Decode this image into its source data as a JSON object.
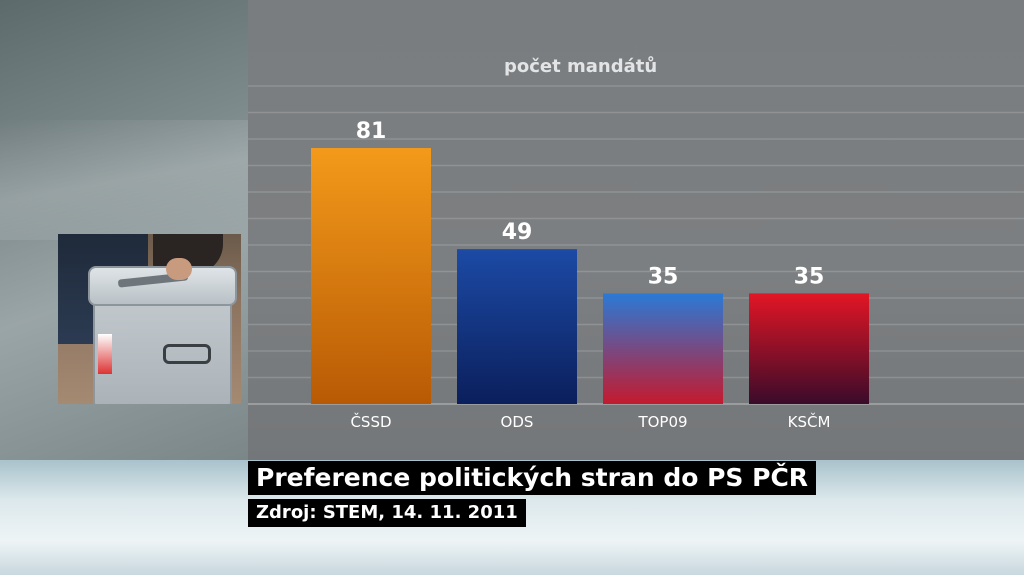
{
  "chart_data": {
    "type": "bar",
    "subtitle": "počet mandátů",
    "categories": [
      "ČSSD",
      "ODS",
      "TOP09",
      "KSČM"
    ],
    "values": [
      81,
      49,
      35,
      35
    ],
    "ylim": [
      0,
      100
    ],
    "grid": true,
    "colors": [
      [
        "#f39a1a",
        "#b85a05"
      ],
      [
        "#1c4aa5",
        "#0b1f5c"
      ],
      [
        "#2a7ad6",
        "#c41a2e"
      ],
      [
        "#e21625",
        "#3a0b2a"
      ]
    ]
  },
  "caption": {
    "title": "Preference politických stran do PS PČR",
    "source": "Zdroj: STEM, 14. 11. 2011"
  }
}
